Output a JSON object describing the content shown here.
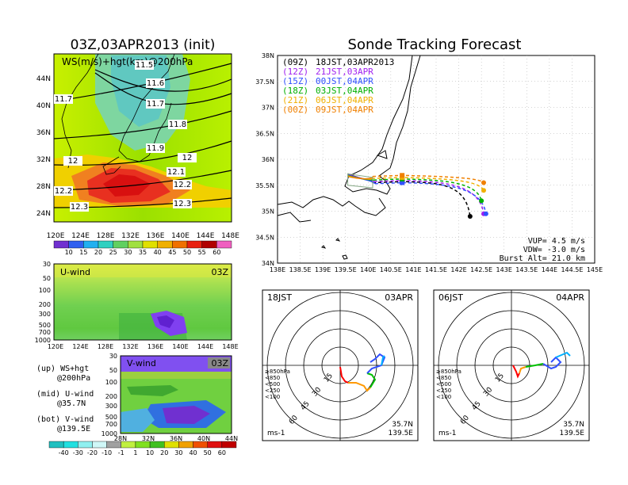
{
  "left": {
    "title": "03Z,03APR2013 (init)",
    "map_label": "WS(m/s)+hgt(km)@200hPa",
    "lat_labels": [
      "44N",
      "40N",
      "36N",
      "32N",
      "28N",
      "24N"
    ],
    "lon_labels": [
      "120E",
      "124E",
      "128E",
      "132E",
      "136E",
      "140E",
      "144E",
      "148E"
    ],
    "hgt_contours": [
      "11.5",
      "11.6",
      "11.7",
      "11.7",
      "11.8",
      "11.9",
      "12",
      "12",
      "12.1",
      "12.2",
      "12.2",
      "12.3",
      "12.3"
    ],
    "ws_ticks": [
      "10",
      "15",
      "20",
      "25",
      "30",
      "35",
      "40",
      "45",
      "50",
      "55",
      "60"
    ],
    "uwind": {
      "label": "U-wind",
      "time": "03Z",
      "p_labels": [
        "30",
        "50",
        "100",
        "200",
        "300",
        "500",
        "700",
        "1000"
      ],
      "lon_labels": [
        "120E",
        "124E",
        "128E",
        "132E",
        "136E",
        "140E",
        "144E",
        "148E"
      ]
    },
    "vwind": {
      "label": "V-wind",
      "time": "03Z",
      "p_labels": [
        "30",
        "50",
        "100",
        "200",
        "300",
        "500",
        "700",
        "1000"
      ],
      "lat_labels": [
        "28N",
        "32N",
        "36N",
        "40N",
        "44N"
      ]
    },
    "legend": {
      "up": "(up) WS+hgt",
      "up2": "@200hPa",
      "mid": "(mid) U-wind",
      "mid2": "@35.7N",
      "bot": "(bot) V-wind",
      "bot2": "@139.5E"
    },
    "wind_ticks": [
      "-40",
      "-30",
      "-20",
      "-10",
      "-1",
      "1",
      "10",
      "20",
      "30",
      "40",
      "50",
      "60"
    ]
  },
  "right": {
    "title": "Sonde Tracking Forecast",
    "lat_labels": [
      "38N",
      "37.5N",
      "37N",
      "36.5N",
      "36N",
      "35.5N",
      "35N",
      "34.5N",
      "34N"
    ],
    "lon_labels": [
      "138E",
      "138.5E",
      "139E",
      "139.5E",
      "140E",
      "140.5E",
      "141E",
      "141.5E",
      "142E",
      "142.5E",
      "143E",
      "143.5E",
      "144E",
      "144.5E",
      "145E"
    ],
    "tracks": [
      {
        "code": "(09Z)",
        "time": "18JST,03APR2013",
        "color": "#000000"
      },
      {
        "code": "(12Z)",
        "time": "21JST,03APR",
        "color": "#a020f0"
      },
      {
        "code": "(15Z)",
        "time": "00JST,04APR",
        "color": "#3050ff"
      },
      {
        "code": "(18Z)",
        "time": "03JST,04APR",
        "color": "#00b000"
      },
      {
        "code": "(21Z)",
        "time": "06JST,04APR",
        "color": "#f0b000"
      },
      {
        "code": "(00Z)",
        "time": "09JST,04APR",
        "color": "#f08000"
      }
    ],
    "params": {
      "vup": "VUP= 4.5 m/s",
      "vdw": "VDW= -3.0 m/s",
      "burst": "Burst Alt= 21.0 km"
    },
    "hodo1": {
      "time": "18JST",
      "date": "03APR",
      "loc1": "35.7N",
      "loc2": "139.5E",
      "unit": "ms-1"
    },
    "hodo2": {
      "time": "06JST",
      "date": "04APR",
      "loc1": "35.7N",
      "loc2": "139.5E",
      "unit": "ms-1"
    },
    "ring_labels": [
      "15",
      "30",
      "45",
      "60"
    ],
    "press_legend": [
      "≥850hPa",
      "<850",
      "<500",
      "<250",
      "<100"
    ],
    "press_colors": [
      "#ff0000",
      "#ff9900",
      "#00c000",
      "#00b0ff",
      "#3050ff"
    ]
  },
  "chart_data": [
    {
      "type": "heatmap",
      "title": "03Z,03APR2013 (init)",
      "subtitle": "WS(m/s)+hgt(km)@200hPa",
      "x_range": [
        "120E",
        "148E"
      ],
      "y_range": [
        "24N",
        "44N"
      ],
      "colorbar": [
        10,
        15,
        20,
        25,
        30,
        35,
        40,
        45,
        50,
        55,
        60
      ],
      "contour_labels": [
        11.5,
        11.6,
        11.7,
        11.7,
        11.8,
        11.9,
        12,
        12,
        12.1,
        12.2,
        12.2,
        12.3,
        12.3
      ]
    },
    {
      "type": "heatmap",
      "title": "U-wind",
      "y_range_hPa": [
        1000,
        30
      ],
      "x_range": [
        "120E",
        "148E"
      ]
    },
    {
      "type": "heatmap",
      "title": "V-wind",
      "y_range_hPa": [
        1000,
        30
      ],
      "x_range": [
        "28N",
        "44N"
      ]
    },
    {
      "type": "line",
      "title": "Sonde Tracking Forecast",
      "x_range": [
        138,
        145
      ],
      "y_range": [
        34,
        38
      ],
      "launch": {
        "lon": 140.1,
        "lat": 35.55
      },
      "series": [
        {
          "name": "(09Z) 18JST,03APR2013",
          "end": {
            "lon": 142.25,
            "lat": 34.9
          }
        },
        {
          "name": "(12Z) 21JST,03APR",
          "end": {
            "lon": 142.55,
            "lat": 34.95
          }
        },
        {
          "name": "(15Z) 00JST,04APR",
          "end": {
            "lon": 142.6,
            "lat": 34.95
          }
        },
        {
          "name": "(18Z) 03JST,04APR",
          "end": {
            "lon": 142.5,
            "lat": 35.2
          }
        },
        {
          "name": "(21Z) 06JST,04APR",
          "end": {
            "lon": 142.55,
            "lat": 35.4
          }
        },
        {
          "name": "(00Z) 09JST,04APR",
          "end": {
            "lon": 142.55,
            "lat": 35.55
          }
        }
      ]
    },
    {
      "type": "scatter",
      "title": "18JST 03APR hodograph",
      "rings": [
        15,
        30,
        45,
        60
      ]
    },
    {
      "type": "scatter",
      "title": "06JST 04APR hodograph",
      "rings": [
        15,
        30,
        45,
        60
      ]
    }
  ]
}
